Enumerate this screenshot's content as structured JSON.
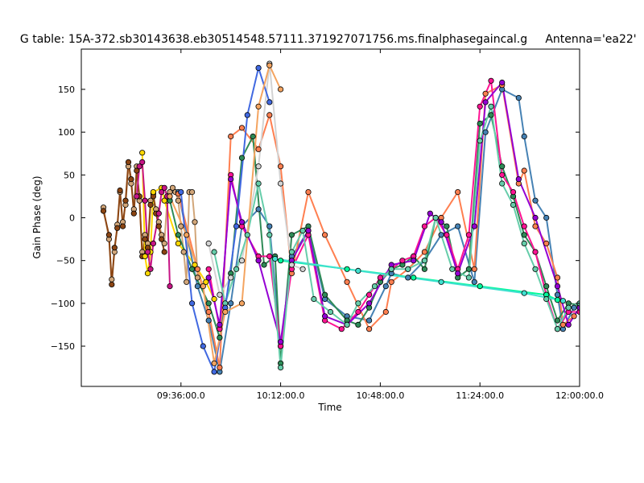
{
  "chart_data": {
    "type": "line",
    "title": "G table: 15A-372.sb30143638.eb30514548.57111.371927071756.ms.finalphasegaincal.g",
    "subtitle": "Antenna='ea22'",
    "xlabel": "Time",
    "ylabel": "Gain Phase (deg)",
    "x_ticks": [
      "09:36:00.0",
      "10:12:00.0",
      "10:48:00.0",
      "11:24:00.0",
      "12:00:00.0"
    ],
    "x_tick_minutes": [
      96,
      132,
      168,
      204,
      240
    ],
    "xlim_minutes": [
      60,
      240
    ],
    "ylim": [
      -197,
      197
    ],
    "y_ticks": [
      -150,
      -100,
      -50,
      0,
      50,
      100,
      150
    ],
    "grid": false,
    "series": [
      {
        "color": "#d2a679",
        "x": [
          68,
          70,
          71,
          72,
          73,
          74,
          75,
          76,
          77,
          78,
          79,
          80,
          81,
          82,
          83,
          84,
          85,
          86,
          87,
          88,
          89,
          90,
          91,
          92,
          93,
          94,
          95,
          96,
          97,
          98,
          99,
          100,
          101,
          102
        ],
        "y": [
          12,
          -25,
          -72,
          -40,
          -8,
          30,
          -5,
          15,
          60,
          40,
          10,
          60,
          20,
          -40,
          -20,
          -30,
          20,
          28,
          10,
          -5,
          -20,
          -30,
          20,
          30,
          35,
          30,
          20,
          -10,
          -40,
          -75,
          30,
          30,
          -5,
          -70
        ]
      },
      {
        "color": "#8b4513",
        "x": [
          68,
          70,
          71,
          72,
          73,
          74,
          75,
          76,
          77,
          78,
          79,
          80,
          81,
          82,
          83,
          84,
          85,
          86,
          87,
          88,
          89,
          90
        ],
        "y": [
          8,
          -20,
          -78,
          -35,
          -12,
          32,
          -10,
          20,
          65,
          45,
          5,
          55,
          25,
          -45,
          -25,
          -35,
          15,
          25,
          5,
          -10,
          -25,
          -40
        ]
      },
      {
        "color": "#ffd700",
        "x": [
          82,
          83,
          84,
          85,
          86,
          89,
          90,
          95,
          101,
          105,
          108
        ],
        "y": [
          76,
          -45,
          -65,
          -40,
          30,
          35,
          20,
          -30,
          -55,
          -75,
          -95
        ]
      },
      {
        "color": "#c71585",
        "x": [
          80,
          81,
          82,
          83,
          84,
          85,
          86,
          88,
          89,
          90,
          91,
          92
        ],
        "y": [
          25,
          60,
          65,
          20,
          -40,
          -60,
          -30,
          5,
          30,
          35,
          25,
          -80
        ]
      },
      {
        "color": "#4682b4",
        "x": [
          95,
          102,
          106,
          110,
          114,
          118,
          124,
          128,
          132,
          136,
          142,
          148,
          156,
          164,
          170,
          172,
          178,
          184,
          190,
          196,
          202,
          206,
          212,
          218,
          220,
          224,
          228,
          232,
          234,
          238
        ],
        "y": [
          30,
          -80,
          -120,
          -180,
          -100,
          -10,
          10,
          -10,
          -150,
          -45,
          -15,
          -95,
          -115,
          -120,
          -80,
          -65,
          -70,
          -50,
          -20,
          -10,
          -75,
          100,
          150,
          140,
          95,
          20,
          0,
          -90,
          -130,
          -105
        ]
      },
      {
        "color": "#ff7f50",
        "x": [
          95,
          102,
          106,
          110,
          114,
          118,
          124,
          128,
          132,
          136,
          142,
          148,
          156,
          164,
          170,
          172,
          178,
          184,
          190,
          196,
          202,
          206,
          212,
          218,
          220,
          224,
          228,
          232,
          234,
          238
        ],
        "y": [
          28,
          -60,
          -110,
          -175,
          95,
          105,
          80,
          120,
          60,
          -65,
          30,
          -20,
          -75,
          -130,
          -110,
          -75,
          -60,
          -40,
          0,
          30,
          -60,
          145,
          155,
          40,
          55,
          -10,
          -30,
          -70,
          -125,
          -115
        ]
      },
      {
        "color": "#2e8b57",
        "x": [
          92,
          95,
          100,
          106,
          110,
          114,
          118,
          122,
          126,
          130,
          132,
          136,
          142,
          148,
          156,
          160,
          164,
          168,
          172,
          176,
          180,
          184,
          188,
          192,
          196,
          200,
          204,
          208,
          212,
          216,
          220,
          224,
          228,
          232,
          236,
          240
        ],
        "y": [
          20,
          -20,
          -60,
          -100,
          -140,
          -65,
          70,
          95,
          -55,
          -45,
          -170,
          -20,
          -10,
          -90,
          -120,
          -125,
          -105,
          -75,
          -60,
          -55,
          -45,
          -60,
          0,
          -10,
          -70,
          -60,
          110,
          120,
          60,
          25,
          -20,
          -40,
          -80,
          -120,
          -100,
          -102
        ]
      },
      {
        "color": "#ff1493",
        "x": [
          106,
          110,
          114,
          118,
          124,
          128,
          132,
          136,
          142,
          148,
          154,
          160,
          164,
          168,
          172,
          176,
          180,
          184,
          188,
          192,
          196,
          200,
          204,
          208,
          212,
          216,
          220,
          224,
          228,
          232,
          236,
          240
        ],
        "y": [
          -60,
          -130,
          50,
          -10,
          -45,
          -45,
          -150,
          -60,
          -20,
          -120,
          -130,
          -110,
          -90,
          -70,
          -60,
          -50,
          -45,
          -10,
          0,
          -20,
          -60,
          -20,
          130,
          160,
          50,
          30,
          -10,
          -40,
          -90,
          -130,
          -110,
          -110
        ]
      },
      {
        "color": "#9400d3",
        "x": [
          106,
          110,
          114,
          118,
          124,
          132,
          136,
          142,
          148,
          156,
          164,
          172,
          180,
          186,
          190,
          196,
          202,
          206,
          212,
          218,
          224,
          232,
          236,
          240
        ],
        "y": [
          -70,
          -125,
          45,
          -5,
          -50,
          -145,
          -50,
          -15,
          -115,
          -125,
          -100,
          -55,
          -50,
          5,
          -5,
          -65,
          -10,
          135,
          158,
          45,
          0,
          -80,
          -125,
          -105
        ]
      },
      {
        "color": "#d3d3d3",
        "x": [
          106,
          110,
          114,
          118,
          124,
          128,
          132,
          136,
          140
        ],
        "y": [
          -30,
          -90,
          -70,
          -50,
          60,
          180,
          40,
          -55,
          -60
        ]
      },
      {
        "color": "#00fa9a",
        "x": [
          132,
          156,
          180,
          204,
          228,
          232
        ],
        "y": [
          -50,
          -60,
          -70,
          -80,
          -90,
          -96
        ]
      },
      {
        "color": "#40e0d0",
        "x": [
          130,
          160,
          190,
          220,
          234
        ],
        "y": [
          -48,
          -62,
          -75,
          -88,
          -97
        ]
      },
      {
        "color": "#66cdaa",
        "x": [
          108,
          112,
          116,
          120,
          124,
          128,
          132,
          136,
          140,
          144,
          150,
          156,
          160,
          166,
          172,
          178,
          184,
          188,
          194,
          200,
          204,
          208,
          212,
          216,
          220,
          224,
          228,
          232,
          236,
          240
        ],
        "y": [
          -40,
          -100,
          -60,
          -20,
          40,
          -20,
          -175,
          -40,
          -15,
          -95,
          -110,
          -125,
          -100,
          -80,
          -60,
          -60,
          -50,
          0,
          -60,
          -70,
          90,
          130,
          40,
          15,
          -30,
          -60,
          -95,
          -130,
          -105,
          -100
        ]
      },
      {
        "color": "#4169e1",
        "x": [
          96,
          100,
          104,
          108,
          112,
          116,
          120,
          124,
          128
        ],
        "y": [
          30,
          -100,
          -150,
          -180,
          -105,
          -10,
          120,
          175,
          135
        ]
      },
      {
        "color": "#f4a460",
        "x": [
          92,
          98,
          104,
          108,
          112,
          118,
          124,
          128,
          132
        ],
        "y": [
          25,
          -20,
          -80,
          -170,
          -110,
          -100,
          130,
          178,
          150
        ]
      }
    ]
  }
}
